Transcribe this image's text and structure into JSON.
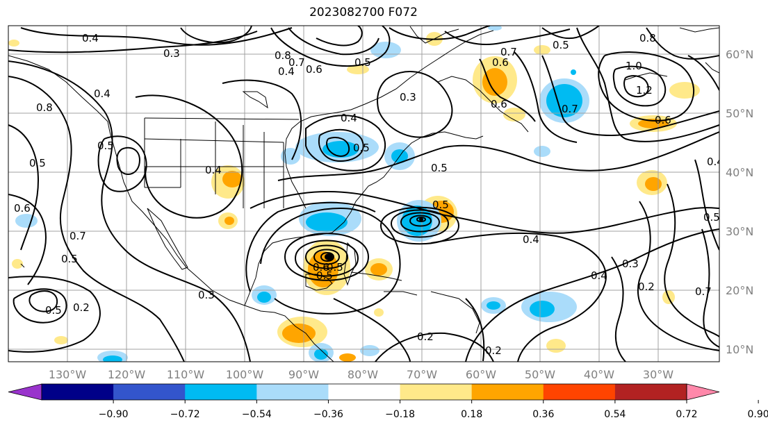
{
  "title": "2023082700 F072",
  "lat_labels": [
    "60°N",
    "50°N",
    "40°N",
    "30°N",
    "20°N",
    "10°N"
  ],
  "lon_labels": [
    "130°W",
    "120°W",
    "110°W",
    "100°W",
    "90°W",
    "80°W",
    "70°W",
    "60°W",
    "50°W",
    "40°W",
    "30°W"
  ],
  "colorbar": {
    "colors": [
      "#9933cc",
      "#000088",
      "#3355cc",
      "#00bbf2",
      "#aadcfa",
      "#ffffff",
      "#ffe98a",
      "#ffa500",
      "#ff4400",
      "#b22222",
      "#ff88aa"
    ],
    "tick_labels": [
      "−0.90",
      "−0.72",
      "−0.54",
      "−0.36",
      "−0.18",
      "0.18",
      "0.36",
      "0.54",
      "0.72",
      "0.90"
    ]
  },
  "contour_labels": [
    "0.4",
    "0.3",
    "0.8",
    "0.7",
    "0.6",
    "0.5",
    "0.4",
    "0.3",
    "0.7",
    "0.6",
    "0.5",
    "1.0",
    "1.2",
    "0.8",
    "0.7",
    "0.6",
    "0.6",
    "0.5",
    "0.4",
    "0.5",
    "0.4",
    "0.5",
    "0.4",
    "0.5",
    "0.6",
    "0.5",
    "0.7",
    "0.5",
    "0.5",
    "0.2",
    "0.3",
    "0.6",
    "0.5",
    "0.4",
    "0.4",
    "0.3",
    "0.2",
    "0.7",
    "0.2",
    "0.2",
    "0.5",
    "0.4",
    "0.5",
    "0.8"
  ]
}
